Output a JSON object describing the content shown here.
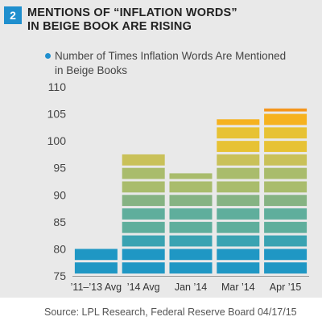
{
  "figure_number": "2",
  "title_line1": "MENTIONS OF “INFLATION WORDS”",
  "title_line2": "IN BEIGE BOOK ARE RISING",
  "legend_line1": "Number of Times Inflation Words Are Mentioned",
  "legend_line2": "in Beige Books",
  "source": "Source: LPL Research, Federal Reserve Board   04/17/15",
  "chart_data": {
    "type": "bar",
    "categories": [
      "’11–’13 Avg",
      "’14 Avg",
      "Jan ’14",
      "Mar ’14",
      "Apr ’15"
    ],
    "values": [
      80,
      97.5,
      94,
      104,
      106
    ],
    "ylim": [
      75,
      110
    ],
    "yticks": [
      75,
      80,
      85,
      90,
      95,
      100,
      105,
      110
    ],
    "series": [
      {
        "name": "Number of Times Inflation Words Are Mentioned in Beige Books",
        "values": [
          80,
          97.5,
          94,
          104,
          106
        ]
      }
    ],
    "grid": false,
    "colors": [
      "#1f97c4",
      "#3aa3b2",
      "#5fae9c",
      "#86b383",
      "#a9bc6c",
      "#c9c159",
      "#e7c234",
      "#f6b21f",
      "#f5961d"
    ]
  }
}
